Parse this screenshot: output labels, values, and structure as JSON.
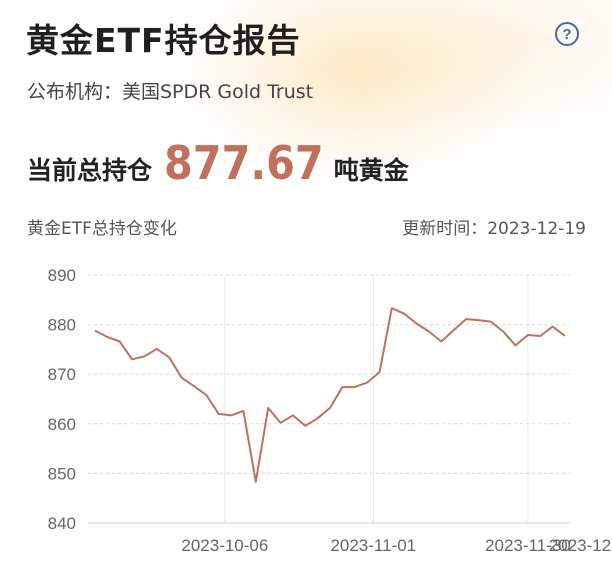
{
  "header": {
    "title": "黄金ETF持仓报告",
    "help_icon": "question-circle-icon"
  },
  "institution": {
    "text": "公布机构：美国SPDR Gold Trust"
  },
  "holding": {
    "label": "当前总持仓",
    "value": "877.67",
    "unit": "吨黄金"
  },
  "chart_header": {
    "title": "黄金ETF总持仓变化",
    "update_text": "更新时间：2023-12-19"
  },
  "colors": {
    "accent": "#c0705d",
    "help": "#3b6bb5"
  },
  "chart_data": {
    "type": "line",
    "title": "",
    "xlabel": "",
    "ylabel": "",
    "ylim": [
      840,
      890
    ],
    "yticks": [
      890,
      880,
      870,
      860,
      850,
      840
    ],
    "x_tick_labels": [
      "2023-10-06",
      "2023-11-01",
      "2023-11-30",
      "2023-12"
    ],
    "x_tick_index": [
      10.5,
      22.5,
      35,
      43
    ],
    "grid": "horizontal dashed + vertical at ticks",
    "series": [
      {
        "color": "#c0705d",
        "values": [
          878.8,
          877.5,
          876.6,
          873.0,
          873.6,
          875.1,
          873.4,
          869.3,
          867.6,
          865.8,
          862.0,
          861.7,
          862.6,
          848.3,
          863.2,
          860.2,
          861.7,
          859.6,
          861.1,
          863.2,
          867.4,
          867.4,
          868.3,
          870.4,
          883.3,
          882.2,
          880.2,
          878.6,
          876.6,
          878.9,
          881.1,
          880.9,
          880.6,
          878.6,
          875.8,
          877.9,
          877.7,
          879.6,
          877.7
        ]
      }
    ]
  }
}
